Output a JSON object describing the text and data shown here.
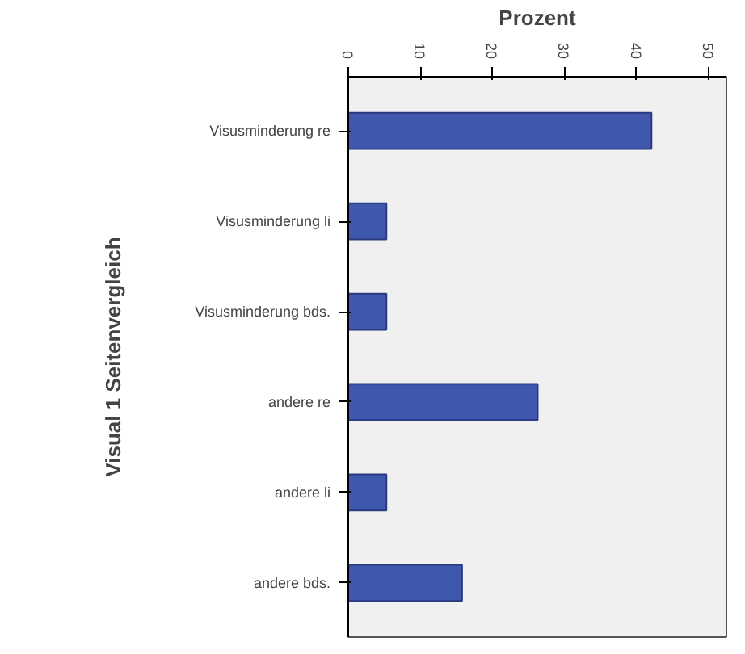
{
  "chart_data": {
    "type": "bar",
    "orientation": "horizontal",
    "xlabel": "Prozent",
    "ylabel": "Visual 1 Seitenvergleich",
    "categories": [
      "Visusminderung re",
      "Visusminderung li",
      "Visusminderung bds.",
      "andere re",
      "andere li",
      "andere bds."
    ],
    "values": [
      42.1,
      5.3,
      5.3,
      26.3,
      5.3,
      15.8
    ],
    "color": "#3f58ad",
    "xlim": [
      0,
      52.5
    ],
    "xticks": [
      0,
      10,
      20,
      30,
      40,
      50
    ],
    "grid": false
  }
}
